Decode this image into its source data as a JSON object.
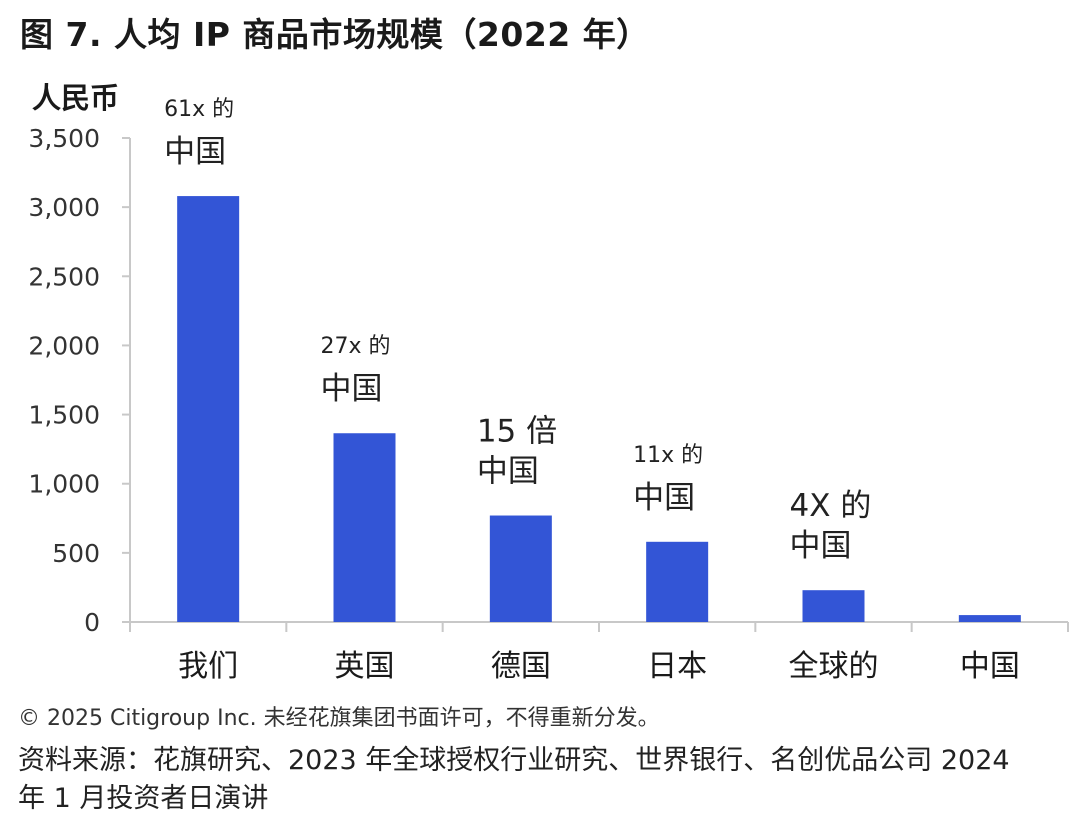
{
  "chart_data": {
    "type": "bar",
    "title": "图 7. 人均 IP 商品市场规模（2022 年）",
    "ylabel": "人民币",
    "xlabel": "",
    "ylim": [
      0,
      3500
    ],
    "yticks": [
      0,
      500,
      1000,
      1500,
      2000,
      2500,
      3000,
      3500
    ],
    "ytick_labels": [
      "0",
      "500",
      "1,000",
      "1,500",
      "2,000",
      "2,500",
      "3,000",
      "3,500"
    ],
    "categories": [
      "我们",
      "英国",
      "德国",
      "日本",
      "全球的",
      "中国"
    ],
    "values": [
      3080,
      1365,
      770,
      580,
      230,
      50
    ],
    "annotations": [
      {
        "line1": "61x 的",
        "line2": "中国"
      },
      {
        "line1": "27x 的",
        "line2": "中国"
      },
      {
        "line1": "15 倍",
        "line2": "中国"
      },
      {
        "line1": "11x 的",
        "line2": "中国"
      },
      {
        "line1": "4X 的",
        "line2": "中国"
      },
      {
        "line1": "",
        "line2": ""
      }
    ],
    "bar_color": "#3355d6",
    "grid": false,
    "legend": "none"
  },
  "footer": {
    "copyright": "© 2025 Citigroup Inc. 未经花旗集团书面许可，不得重新分发。",
    "source": "资料来源：花旗研究、2023 年全球授权行业研究、世界银行、名创优品公司 2024 年 1 月投资者日演讲"
  }
}
